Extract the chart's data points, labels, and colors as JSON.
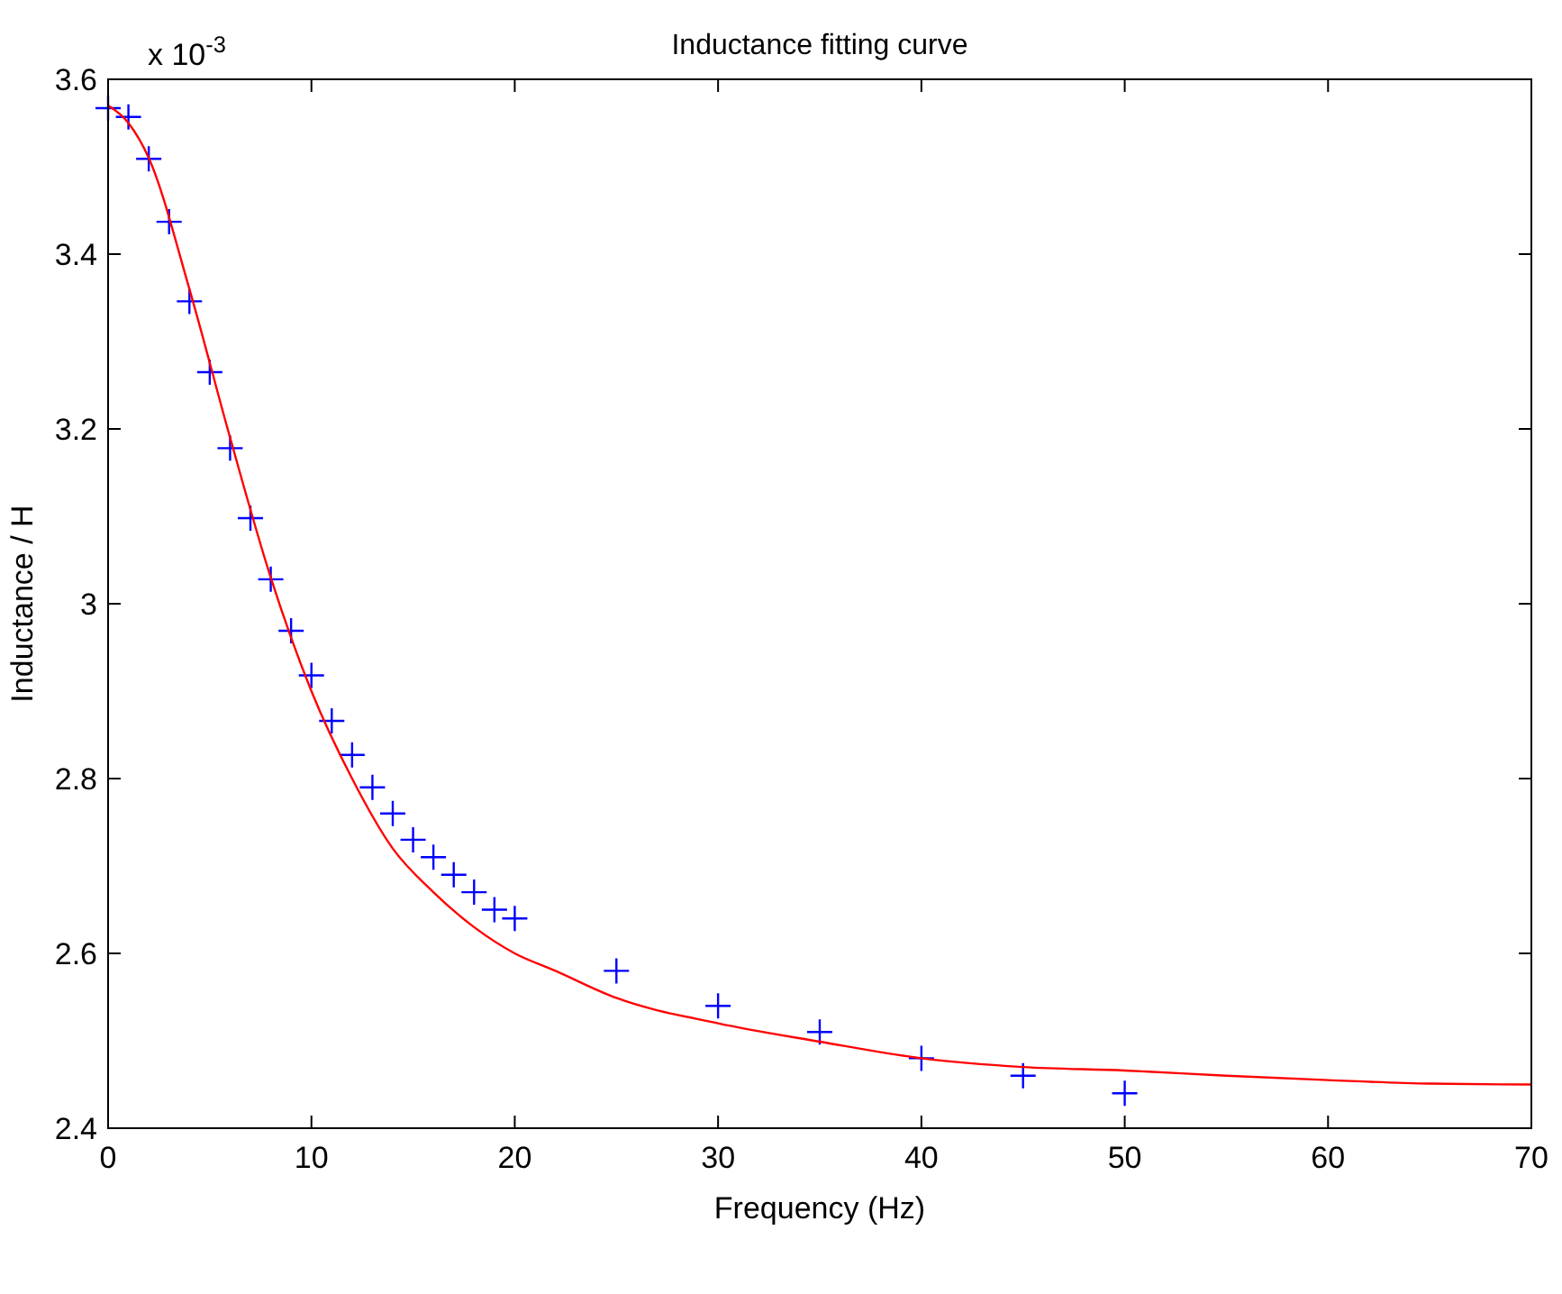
{
  "chart_data": {
    "type": "scatter",
    "title": "Inductance fitting curve",
    "xlabel": "Frequency (Hz)",
    "ylabel": "Inductance / H",
    "annotations": [
      "x 10$^{-3}$"
    ],
    "xlim": [
      0,
      70
    ],
    "xticks": [
      0,
      10,
      20,
      30,
      40,
      50,
      60,
      70
    ],
    "ylim": [
      2.4,
      3.6
    ],
    "yticks": [
      2.4,
      2.6,
      2.8,
      {
        "value": 3,
        "label": "3"
      },
      3.2,
      3.4,
      3.6
    ],
    "grid": false,
    "series": [
      {
        "color": "#0000ff",
        "marker": "cross",
        "x": [
          0,
          1,
          2,
          3,
          4,
          5,
          6,
          7,
          8,
          9,
          10,
          11,
          12,
          13,
          14,
          15,
          16,
          17,
          18,
          19,
          20,
          25,
          30,
          35,
          40,
          45,
          50
        ],
        "values": [
          3.567,
          3.557,
          3.509,
          3.437,
          3.346,
          3.265,
          3.178,
          3.098,
          3.028,
          2.969,
          2.918,
          2.866,
          2.827,
          2.79,
          2.76,
          2.73,
          2.71,
          2.69,
          2.67,
          2.65,
          2.64,
          2.58,
          2.54,
          2.51,
          2.48,
          2.46,
          2.44
        ]
      },
      {
        "type": "line",
        "color": "#ff0000",
        "marker": "none",
        "line_style": "solid",
        "x": [
          0,
          1,
          2,
          4,
          6,
          8,
          10,
          12,
          14,
          16,
          18,
          20,
          22,
          25,
          30,
          35,
          40,
          45,
          50,
          55,
          60,
          65,
          70
        ],
        "values": [
          3.57,
          3.55,
          3.51,
          3.36,
          3.19,
          3.03,
          2.9,
          2.8,
          2.72,
          2.67,
          2.63,
          2.6,
          2.58,
          2.549,
          2.52,
          2.499,
          2.48,
          2.47,
          2.466,
          2.46,
          2.455,
          2.451,
          2.45
        ]
      }
    ]
  }
}
